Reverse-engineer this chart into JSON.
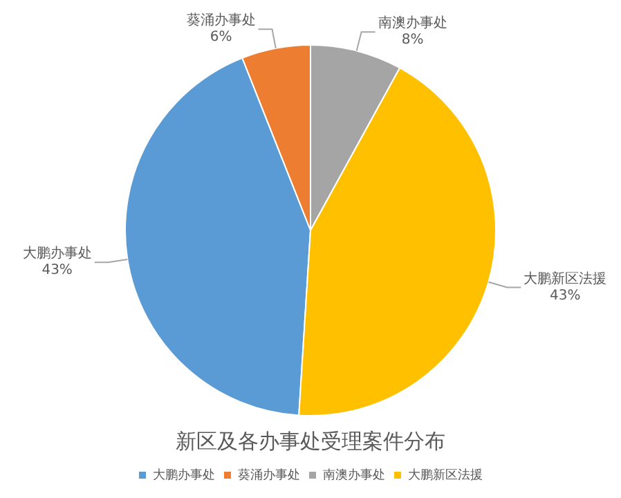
{
  "chart_data": {
    "type": "pie",
    "title": "新区及各办事处受理案件分布",
    "categories": [
      "大鹏办事处",
      "葵涌办事处",
      "南澳办事处",
      "大鹏新区法援"
    ],
    "values": [
      43,
      6,
      8,
      43
    ],
    "colors": [
      "#5b9bd5",
      "#ed7d31",
      "#a5a5a5",
      "#ffc000"
    ],
    "value_labels": [
      "43%",
      "6%",
      "8%",
      "43%"
    ],
    "legend": "bottom"
  }
}
